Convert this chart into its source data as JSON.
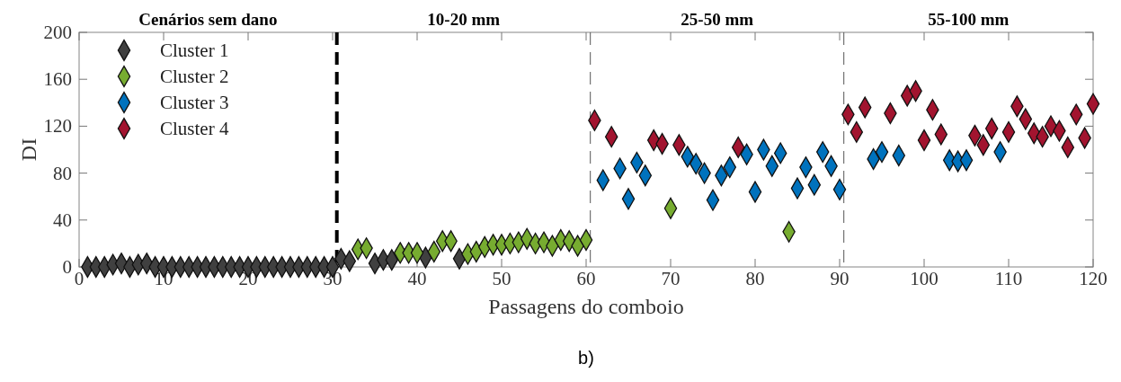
{
  "chart_data": {
    "type": "scatter",
    "xlabel": "Passagens do comboio",
    "ylabel": "DI",
    "xlim": [
      0,
      120
    ],
    "ylim": [
      0,
      200
    ],
    "xticks": [
      0,
      10,
      20,
      30,
      40,
      50,
      60,
      70,
      80,
      90,
      100,
      110,
      120
    ],
    "yticks": [
      0,
      40,
      80,
      120,
      160,
      200
    ],
    "marker": "diamond",
    "legend": "top left",
    "grid": false,
    "annotations": [
      "Cenários sem dano",
      "10-20 mm",
      "25-50 mm",
      "55-100 mm",
      "b)"
    ],
    "ref_lines": [
      {
        "axis": "x",
        "value": 30.5,
        "line_style": "dashed",
        "color": "#000000"
      },
      {
        "axis": "x",
        "value": 60.5,
        "line_style": "dashed",
        "color": "#555555"
      },
      {
        "axis": "x",
        "value": 90.5,
        "line_style": "dashed",
        "color": "#555555"
      }
    ],
    "series": [
      {
        "name": "Cluster 1",
        "color": "#404040",
        "x": [
          1,
          2,
          3,
          4,
          5,
          6,
          7,
          8,
          9,
          10,
          11,
          12,
          13,
          14,
          15,
          16,
          17,
          18,
          19,
          20,
          21,
          22,
          23,
          24,
          25,
          26,
          27,
          28,
          29,
          30,
          31,
          32,
          35,
          36,
          37,
          41,
          45
        ],
        "values": [
          0,
          0,
          0,
          2,
          3,
          0,
          2,
          3,
          0,
          0,
          0,
          0,
          0,
          0,
          0,
          0,
          0,
          0,
          0,
          0,
          0,
          0,
          0,
          0,
          0,
          0,
          0,
          0,
          0,
          0,
          7,
          5,
          3,
          6,
          6,
          8,
          7
        ]
      },
      {
        "name": "Cluster 2",
        "color": "#77ac30",
        "x": [
          33,
          34,
          38,
          39,
          40,
          42,
          43,
          44,
          46,
          47,
          48,
          49,
          50,
          51,
          52,
          53,
          54,
          55,
          56,
          57,
          58,
          59,
          60,
          70,
          84
        ],
        "values": [
          15,
          16,
          12,
          12,
          12,
          13,
          22,
          22,
          11,
          13,
          17,
          19,
          19,
          20,
          21,
          24,
          20,
          21,
          18,
          23,
          22,
          18,
          23,
          50,
          30
        ]
      },
      {
        "name": "Cluster 3",
        "color": "#0072bd",
        "x": [
          62,
          64,
          65,
          66,
          67,
          72,
          73,
          74,
          75,
          76,
          77,
          79,
          80,
          81,
          82,
          83,
          85,
          86,
          87,
          88,
          89,
          90,
          94,
          95,
          97,
          103,
          104,
          105,
          109
        ],
        "values": [
          74,
          84,
          58,
          89,
          78,
          94,
          88,
          80,
          57,
          78,
          85,
          96,
          64,
          100,
          86,
          97,
          67,
          85,
          70,
          98,
          86,
          66,
          92,
          98,
          95,
          91,
          90,
          91,
          98
        ]
      },
      {
        "name": "Cluster 4",
        "color": "#a2142f",
        "x": [
          61,
          63,
          68,
          69,
          71,
          78,
          91,
          92,
          93,
          96,
          98,
          99,
          100,
          101,
          102,
          106,
          107,
          108,
          110,
          111,
          112,
          113,
          114,
          115,
          116,
          117,
          118,
          119,
          120
        ],
        "values": [
          125,
          111,
          108,
          105,
          104,
          102,
          130,
          115,
          136,
          131,
          146,
          150,
          108,
          134,
          113,
          112,
          104,
          118,
          115,
          137,
          126,
          114,
          111,
          120,
          116,
          102,
          130,
          110,
          139
        ]
      }
    ]
  }
}
